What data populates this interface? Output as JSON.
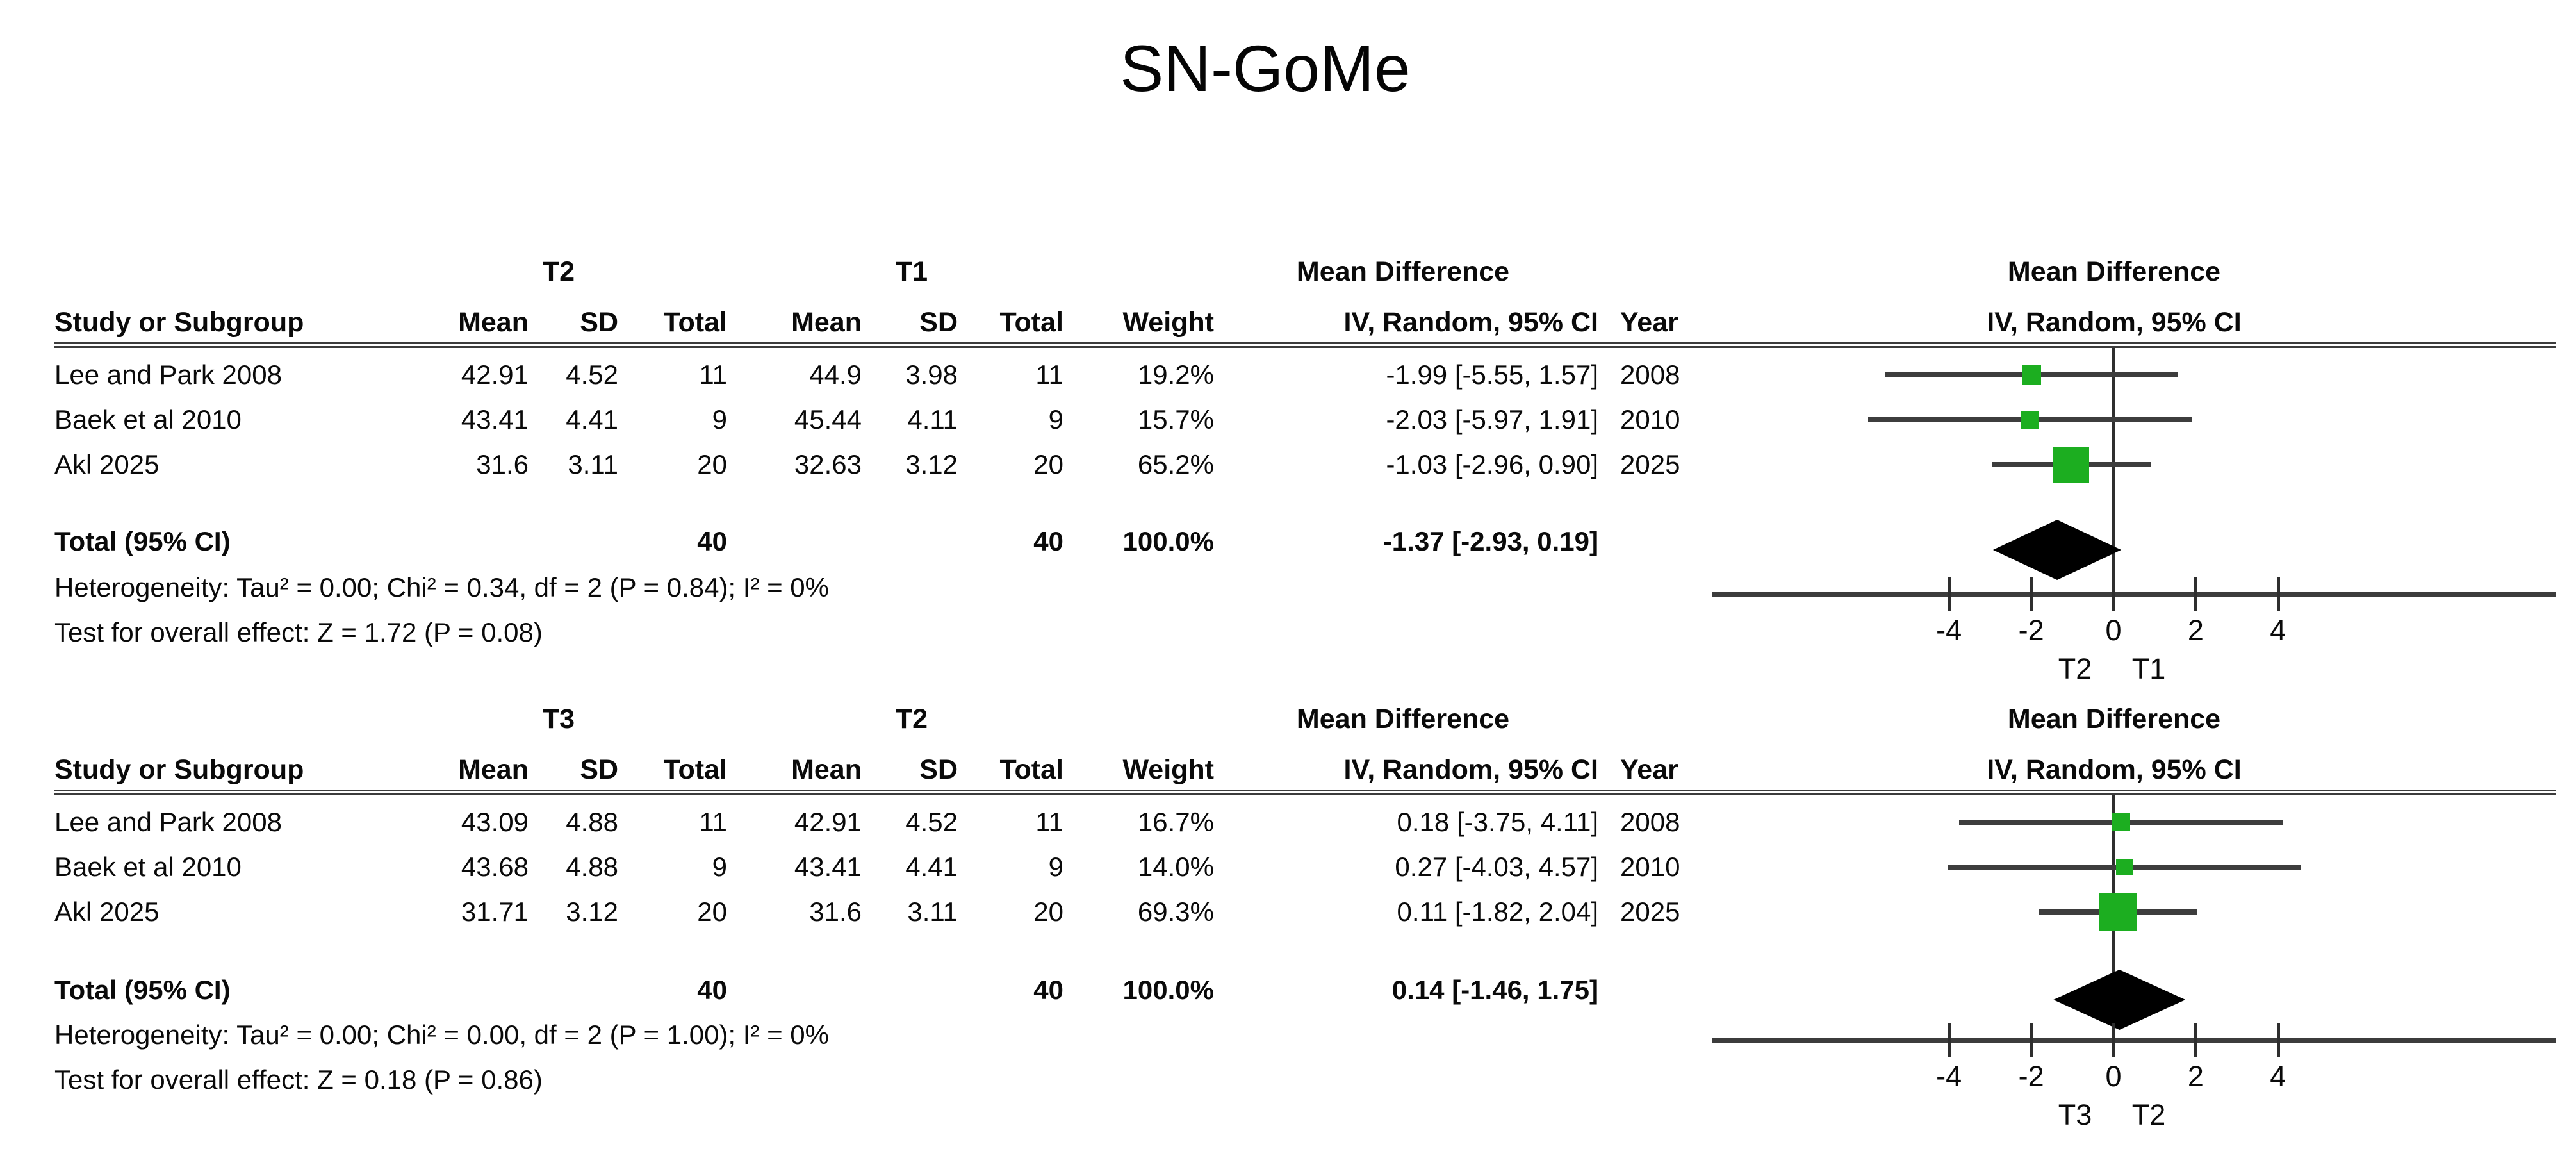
{
  "title": "SN-GoMe",
  "columns": {
    "study": "Study or Subgroup",
    "mean": "Mean",
    "sd": "SD",
    "total": "Total",
    "weight": "Weight",
    "ci": "IV, Random, 95% CI",
    "year": "Year"
  },
  "effect_header": {
    "line1": "Mean Difference",
    "line2": "IV, Random, 95% CI"
  },
  "colors": {
    "square_green": "#1cae20",
    "line_gray": "#3c3c3c",
    "diamond_black": "#000000"
  },
  "chart_data": {
    "type": "forest",
    "title": "SN-GoMe",
    "model": "IV, Random, 95% CI",
    "axis": {
      "ticks": [
        -4,
        -2,
        0,
        2,
        4
      ],
      "xlim": [
        -6.2,
        6.2
      ],
      "grid": false
    },
    "panels": [
      {
        "group1": "T2",
        "group2": "T1",
        "comparison_labels": [
          "T2",
          "T1"
        ],
        "studies": [
          {
            "study": "Lee and Park 2008",
            "mean1": "42.91",
            "sd1": "4.52",
            "n1": "11",
            "mean2": "44.9",
            "sd2": "3.98",
            "n2": "11",
            "weight": "19.2%",
            "ci_text": "-1.99 [-5.55, 1.57]",
            "year": "2008",
            "md": -1.99,
            "lo": -5.55,
            "hi": 1.57,
            "w": 19.2
          },
          {
            "study": "Baek et al 2010",
            "mean1": "43.41",
            "sd1": "4.41",
            "n1": "9",
            "mean2": "45.44",
            "sd2": "4.11",
            "n2": "9",
            "weight": "15.7%",
            "ci_text": "-2.03 [-5.97, 1.91]",
            "year": "2010",
            "md": -2.03,
            "lo": -5.97,
            "hi": 1.91,
            "w": 15.7
          },
          {
            "study": "Akl 2025",
            "mean1": "31.6",
            "sd1": "3.11",
            "n1": "20",
            "mean2": "32.63",
            "sd2": "3.12",
            "n2": "20",
            "weight": "65.2%",
            "ci_text": "-1.03 [-2.96, 0.90]",
            "year": "2025",
            "md": -1.03,
            "lo": -2.96,
            "hi": 0.9,
            "w": 65.2
          }
        ],
        "total": {
          "label": "Total (95% CI)",
          "n1": "40",
          "n2": "40",
          "weight": "100.0%",
          "ci_text": "-1.37 [-2.93, 0.19]",
          "md": -1.37,
          "lo": -2.93,
          "hi": 0.19
        },
        "heterogeneity": "Heterogeneity: Tau² = 0.00; Chi² = 0.34, df = 2 (P = 0.84); I² = 0%",
        "overall": "Test for overall effect: Z = 1.72 (P = 0.08)"
      },
      {
        "group1": "T3",
        "group2": "T2",
        "comparison_labels": [
          "T3",
          "T2"
        ],
        "studies": [
          {
            "study": "Lee and Park 2008",
            "mean1": "43.09",
            "sd1": "4.88",
            "n1": "11",
            "mean2": "42.91",
            "sd2": "4.52",
            "n2": "11",
            "weight": "16.7%",
            "ci_text": "0.18 [-3.75, 4.11]",
            "year": "2008",
            "md": 0.18,
            "lo": -3.75,
            "hi": 4.11,
            "w": 16.7
          },
          {
            "study": "Baek et al 2010",
            "mean1": "43.68",
            "sd1": "4.88",
            "n1": "9",
            "mean2": "43.41",
            "sd2": "4.41",
            "n2": "9",
            "weight": "14.0%",
            "ci_text": "0.27 [-4.03, 4.57]",
            "year": "2010",
            "md": 0.27,
            "lo": -4.03,
            "hi": 4.57,
            "w": 14.0
          },
          {
            "study": "Akl 2025",
            "mean1": "31.71",
            "sd1": "3.12",
            "n1": "20",
            "mean2": "31.6",
            "sd2": "3.11",
            "n2": "20",
            "weight": "69.3%",
            "ci_text": "0.11 [-1.82, 2.04]",
            "year": "2025",
            "md": 0.11,
            "lo": -1.82,
            "hi": 2.04,
            "w": 69.3
          }
        ],
        "total": {
          "label": "Total (95% CI)",
          "n1": "40",
          "n2": "40",
          "weight": "100.0%",
          "ci_text": "0.14 [-1.46, 1.75]",
          "md": 0.14,
          "lo": -1.46,
          "hi": 1.75
        },
        "heterogeneity": "Heterogeneity: Tau² = 0.00; Chi² = 0.00, df = 2 (P = 1.00); I² = 0%",
        "overall": "Test for overall effect: Z = 0.18 (P = 0.86)"
      }
    ]
  }
}
